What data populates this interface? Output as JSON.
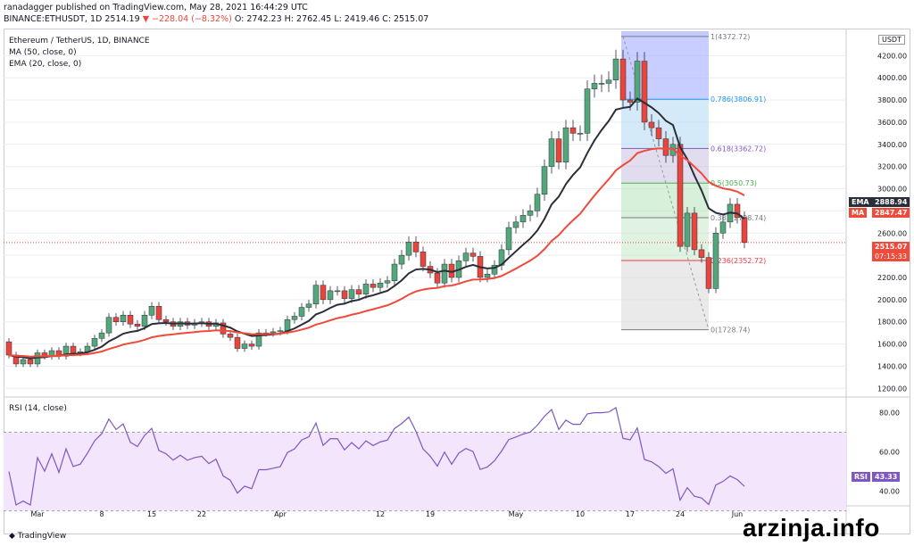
{
  "header": {
    "line1": "ranadagger published on TradingView.com, May 28, 2021 16:44:29 UTC",
    "symbol": "BINANCE:ETHUSDT, 1D",
    "last": "2514.19",
    "change": "▼ −228.04 (−8.32%)",
    "ohlc": "O: 2742.23  H: 2762.45  L: 2419.46  C: 2515.07"
  },
  "legend": {
    "title": "Ethereum / TetherUS, 1D, BINANCE",
    "ma": "MA (50, close, 0)",
    "ema": "EMA (20, close, 0)"
  },
  "rsi_label": "RSI (14, close)",
  "currency": "USDT",
  "tags": {
    "ema": "EMA",
    "ema_val": "2888.94",
    "ma": "MA",
    "ma_val": "2847.47",
    "price": "2515.07",
    "timer": "07:15:33",
    "rsi": "RSI",
    "rsi_val": "43.33"
  },
  "fib_labels": [
    "1(4372.72)",
    "0.786(3806.91)",
    "0.618(3362.72)",
    "0.5(3050.73)",
    "0.382(2738.74)",
    "0.236(2352.72)",
    "0(1728.74)"
  ],
  "brand": "TradingView",
  "watermark": "arzinja.info",
  "colors": {
    "up": "#53a87b",
    "down": "#e8453c",
    "ema": "#2a2e39",
    "ma": "#f04a3a",
    "rsi": "#7e57c2"
  },
  "chart_data": {
    "type": "candlestick",
    "price_axis": {
      "ticks": [
        1200,
        1400,
        1600,
        1800,
        2000,
        2200,
        2400,
        2600,
        2800,
        3000,
        3200,
        3400,
        3600,
        3800,
        4000,
        4200
      ],
      "ylim": [
        1130,
        4420
      ]
    },
    "x_ticks": [
      "Mar",
      "8",
      "15",
      "22",
      "Apr",
      "12",
      "19",
      "May",
      "10",
      "17",
      "24",
      "Jun"
    ],
    "fibonacci": [
      {
        "level": 1,
        "price": 4372.72
      },
      {
        "level": 0.786,
        "price": 3806.91
      },
      {
        "level": 0.618,
        "price": 3362.72
      },
      {
        "level": 0.5,
        "price": 3050.73
      },
      {
        "level": 0.382,
        "price": 2738.74
      },
      {
        "level": 0.236,
        "price": 2352.72
      },
      {
        "level": 0,
        "price": 1728.74
      }
    ],
    "candles": [
      [
        1620,
        1500
      ],
      [
        1500,
        1420
      ],
      [
        1420,
        1460
      ],
      [
        1460,
        1420
      ],
      [
        1420,
        1520
      ],
      [
        1520,
        1490
      ],
      [
        1490,
        1540
      ],
      [
        1540,
        1490
      ],
      [
        1490,
        1580
      ],
      [
        1580,
        1520
      ],
      [
        1520,
        1530
      ],
      [
        1530,
        1580
      ],
      [
        1580,
        1650
      ],
      [
        1650,
        1700
      ],
      [
        1700,
        1840
      ],
      [
        1840,
        1800
      ],
      [
        1800,
        1860
      ],
      [
        1860,
        1780
      ],
      [
        1780,
        1760
      ],
      [
        1760,
        1860
      ],
      [
        1860,
        1940
      ],
      [
        1940,
        1820
      ],
      [
        1820,
        1800
      ],
      [
        1800,
        1760
      ],
      [
        1760,
        1800
      ],
      [
        1800,
        1770
      ],
      [
        1770,
        1790
      ],
      [
        1790,
        1800
      ],
      [
        1800,
        1760
      ],
      [
        1760,
        1790
      ],
      [
        1790,
        1690
      ],
      [
        1690,
        1660
      ],
      [
        1660,
        1560
      ],
      [
        1560,
        1600
      ],
      [
        1600,
        1580
      ],
      [
        1580,
        1700
      ],
      [
        1700,
        1700
      ],
      [
        1700,
        1710
      ],
      [
        1710,
        1720
      ],
      [
        1720,
        1820
      ],
      [
        1820,
        1850
      ],
      [
        1850,
        1930
      ],
      [
        1930,
        1960
      ],
      [
        1960,
        2130
      ],
      [
        2130,
        2000
      ],
      [
        2000,
        2080
      ],
      [
        2080,
        2080
      ],
      [
        2080,
        2010
      ],
      [
        2010,
        2090
      ],
      [
        2090,
        2050
      ],
      [
        2050,
        2140
      ],
      [
        2140,
        2110
      ],
      [
        2110,
        2150
      ],
      [
        2150,
        2170
      ],
      [
        2170,
        2320
      ],
      [
        2320,
        2400
      ],
      [
        2400,
        2520
      ],
      [
        2520,
        2430
      ],
      [
        2430,
        2300
      ],
      [
        2300,
        2240
      ],
      [
        2240,
        2150
      ],
      [
        2150,
        2320
      ],
      [
        2320,
        2200
      ],
      [
        2200,
        2350
      ],
      [
        2350,
        2420
      ],
      [
        2420,
        2390
      ],
      [
        2390,
        2200
      ],
      [
        2200,
        2230
      ],
      [
        2230,
        2310
      ],
      [
        2310,
        2450
      ],
      [
        2450,
        2650
      ],
      [
        2650,
        2700
      ],
      [
        2700,
        2760
      ],
      [
        2760,
        2800
      ],
      [
        2800,
        2950
      ],
      [
        2950,
        3200
      ],
      [
        3200,
        3450
      ],
      [
        3450,
        3240
      ],
      [
        3240,
        3550
      ],
      [
        3550,
        3500
      ],
      [
        3500,
        3500
      ],
      [
        3500,
        3900
      ],
      [
        3900,
        3950
      ],
      [
        3950,
        3950
      ],
      [
        3950,
        3980
      ],
      [
        3980,
        4170
      ],
      [
        4170,
        3800
      ],
      [
        3800,
        3780
      ],
      [
        3780,
        4150
      ],
      [
        4150,
        3600
      ],
      [
        3600,
        3550
      ],
      [
        3550,
        3450
      ],
      [
        3450,
        3300
      ],
      [
        3300,
        3400
      ],
      [
        3400,
        2480
      ],
      [
        2480,
        2780
      ],
      [
        2780,
        2450
      ],
      [
        2450,
        2380
      ],
      [
        2380,
        2100
      ],
      [
        2100,
        2600
      ],
      [
        2600,
        2700
      ],
      [
        2700,
        2860
      ],
      [
        2860,
        2740
      ],
      [
        2740,
        2515
      ]
    ],
    "rsi": {
      "ylim": [
        33,
        87
      ],
      "ticks": [
        40,
        60,
        80
      ],
      "overbought": 70,
      "oversold": 30
    }
  }
}
